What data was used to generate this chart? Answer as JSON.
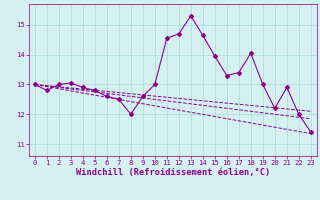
{
  "title": "",
  "xlabel": "Windchill (Refroidissement éolien,°C)",
  "ylabel": "",
  "bg_color": "#d4f0f0",
  "line_color": "#8b008b",
  "grid_color": "#a8dada",
  "x_ticks": [
    0,
    1,
    2,
    3,
    4,
    5,
    6,
    7,
    8,
    9,
    10,
    11,
    12,
    13,
    14,
    15,
    16,
    17,
    18,
    19,
    20,
    21,
    22,
    23
  ],
  "y_ticks": [
    11,
    12,
    13,
    14,
    15
  ],
  "ylim": [
    10.6,
    15.7
  ],
  "xlim": [
    -0.5,
    23.5
  ],
  "main_x": [
    0,
    1,
    2,
    3,
    4,
    5,
    6,
    7,
    8,
    9,
    10,
    11,
    12,
    13,
    14,
    15,
    16,
    17,
    18,
    19,
    20,
    21,
    22,
    23
  ],
  "main_y": [
    13.0,
    12.8,
    13.0,
    13.05,
    12.9,
    12.8,
    12.6,
    12.5,
    12.0,
    12.6,
    13.0,
    14.55,
    14.7,
    15.3,
    14.65,
    13.95,
    13.3,
    13.4,
    14.05,
    13.0,
    12.2,
    12.9,
    12.0,
    11.4
  ],
  "diag_lines": [
    {
      "x0": 0,
      "y0": 13.0,
      "x1": 23,
      "y1": 11.35
    },
    {
      "x0": 0,
      "y0": 13.0,
      "x1": 23,
      "y1": 11.85
    },
    {
      "x0": 0,
      "y0": 13.0,
      "x1": 23,
      "y1": 12.1
    }
  ],
  "tick_fontsize": 5.2,
  "label_fontsize": 6.2
}
